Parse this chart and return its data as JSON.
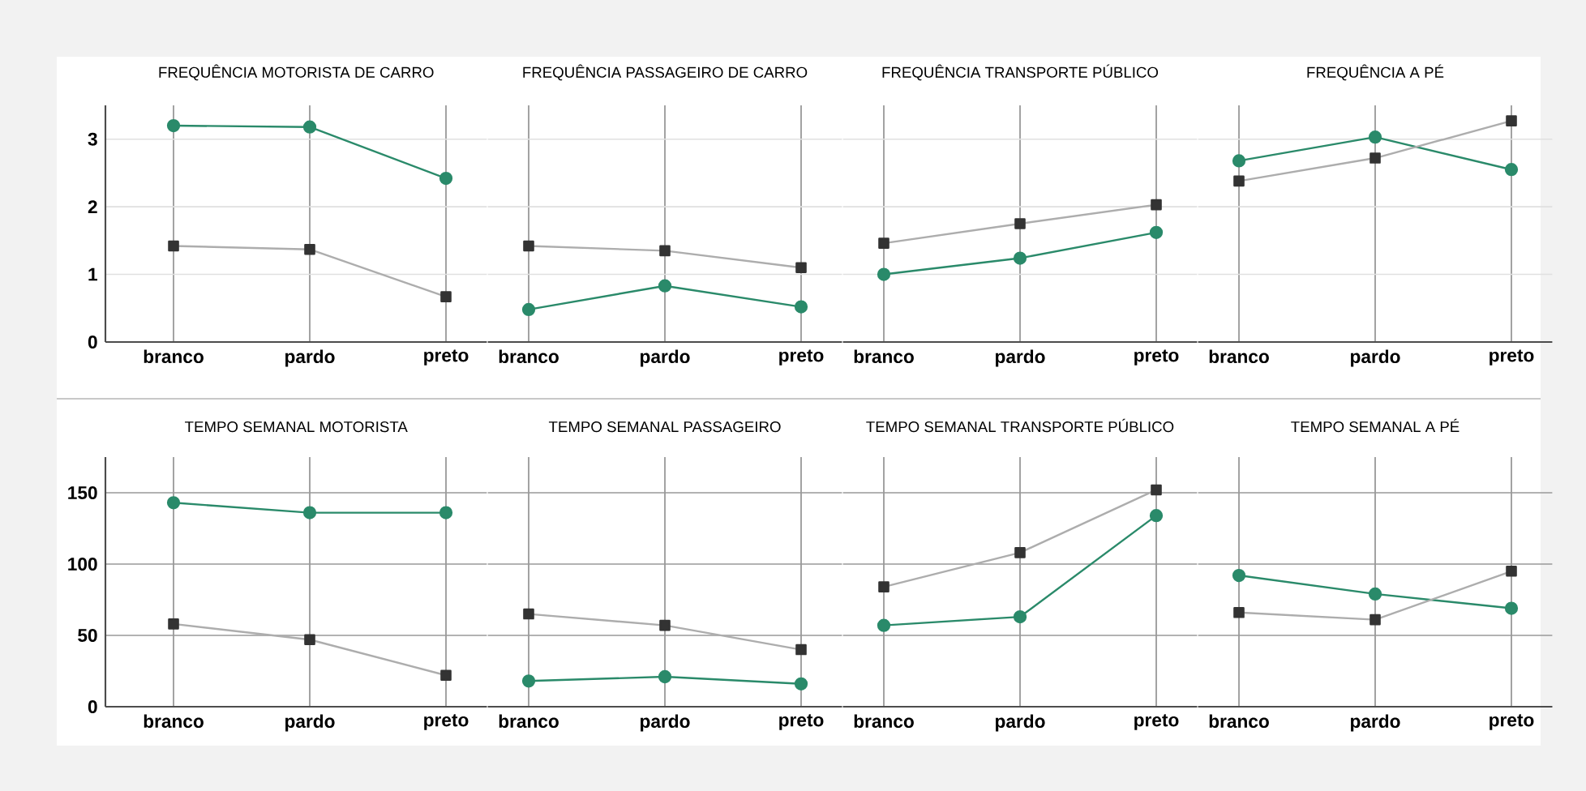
{
  "chart_data": [
    {
      "type": "line",
      "title": "FREQUÊNCIA MOTORISTA DE CARRO",
      "categories": [
        "branco",
        "pardo",
        "preto"
      ],
      "ylim": [
        0,
        3.5
      ],
      "yticks": [
        0,
        1,
        2,
        3
      ],
      "grid": true,
      "series": [
        {
          "color": "#2a8a6a",
          "marker": "circle",
          "values": [
            3.2,
            3.18,
            2.42
          ]
        },
        {
          "color": "#333333",
          "marker": "square",
          "values": [
            1.42,
            1.37,
            0.67
          ]
        }
      ]
    },
    {
      "type": "line",
      "title": "FREQUÊNCIA PASSAGEIRO DE CARRO",
      "categories": [
        "branco",
        "pardo",
        "preto"
      ],
      "ylim": [
        0,
        3.5
      ],
      "yticks": [
        0,
        1,
        2,
        3
      ],
      "grid": true,
      "tick_labels": "x",
      "series": [
        {
          "color": "#2a8a6a",
          "marker": "circle",
          "values": [
            0.48,
            0.83,
            0.52
          ]
        },
        {
          "color": "#333333",
          "marker": "square",
          "values": [
            1.42,
            1.35,
            1.1
          ]
        }
      ]
    },
    {
      "type": "line",
      "title": "FREQUÊNCIA TRANSPORTE PÚBLICO",
      "categories": [
        "branco",
        "pardo",
        "preto"
      ],
      "ylim": [
        0,
        3.5
      ],
      "yticks": [
        0,
        1,
        2,
        3
      ],
      "grid": true,
      "tick_labels": "x",
      "series": [
        {
          "color": "#2a8a6a",
          "marker": "circle",
          "values": [
            1.0,
            1.24,
            1.62
          ]
        },
        {
          "color": "#333333",
          "marker": "square",
          "values": [
            1.46,
            1.75,
            2.03
          ]
        }
      ]
    },
    {
      "type": "line",
      "title": "FREQUÊNCIA A PÉ",
      "categories": [
        "branco",
        "pardo",
        "preto"
      ],
      "ylim": [
        0,
        3.5
      ],
      "yticks": [
        0,
        1,
        2,
        3
      ],
      "grid": true,
      "tick_labels": "x",
      "series": [
        {
          "color": "#2a8a6a",
          "marker": "circle",
          "values": [
            2.68,
            3.03,
            2.55
          ]
        },
        {
          "color": "#333333",
          "marker": "square",
          "values": [
            2.38,
            2.72,
            3.27
          ]
        }
      ]
    },
    {
      "type": "line",
      "title": "TEMPO SEMANAL MOTORISTA",
      "categories": [
        "branco",
        "pardo",
        "preto"
      ],
      "ylim": [
        0,
        175
      ],
      "yticks": [
        0,
        50,
        100,
        150
      ],
      "grid": true,
      "series": [
        {
          "color": "#2a8a6a",
          "marker": "circle",
          "values": [
            143,
            136,
            136
          ]
        },
        {
          "color": "#333333",
          "marker": "square",
          "values": [
            58,
            47,
            22
          ]
        }
      ]
    },
    {
      "type": "line",
      "title": "TEMPO SEMANAL PASSAGEIRO",
      "categories": [
        "branco",
        "pardo",
        "preto"
      ],
      "ylim": [
        0,
        175
      ],
      "yticks": [
        0,
        50,
        100,
        150
      ],
      "grid": true,
      "tick_labels": "x",
      "series": [
        {
          "color": "#2a8a6a",
          "marker": "circle",
          "values": [
            18,
            21,
            16
          ]
        },
        {
          "color": "#333333",
          "marker": "square",
          "values": [
            65,
            57,
            40
          ]
        }
      ]
    },
    {
      "type": "line",
      "title": "TEMPO SEMANAL TRANSPORTE PÚBLICO",
      "categories": [
        "branco",
        "pardo",
        "preto"
      ],
      "ylim": [
        0,
        175
      ],
      "yticks": [
        0,
        50,
        100,
        150
      ],
      "grid": true,
      "tick_labels": "x",
      "series": [
        {
          "color": "#2a8a6a",
          "marker": "circle",
          "values": [
            57,
            63,
            134
          ]
        },
        {
          "color": "#333333",
          "marker": "square",
          "values": [
            84,
            108,
            152
          ]
        }
      ]
    },
    {
      "type": "line",
      "title": "TEMPO SEMANAL A PÉ",
      "categories": [
        "branco",
        "pardo",
        "preto"
      ],
      "ylim": [
        0,
        175
      ],
      "yticks": [
        0,
        50,
        100,
        150
      ],
      "grid": true,
      "tick_labels": "x",
      "series": [
        {
          "color": "#2a8a6a",
          "marker": "circle",
          "values": [
            92,
            79,
            69
          ]
        },
        {
          "color": "#333333",
          "marker": "square",
          "values": [
            66,
            61,
            95
          ]
        }
      ]
    }
  ]
}
